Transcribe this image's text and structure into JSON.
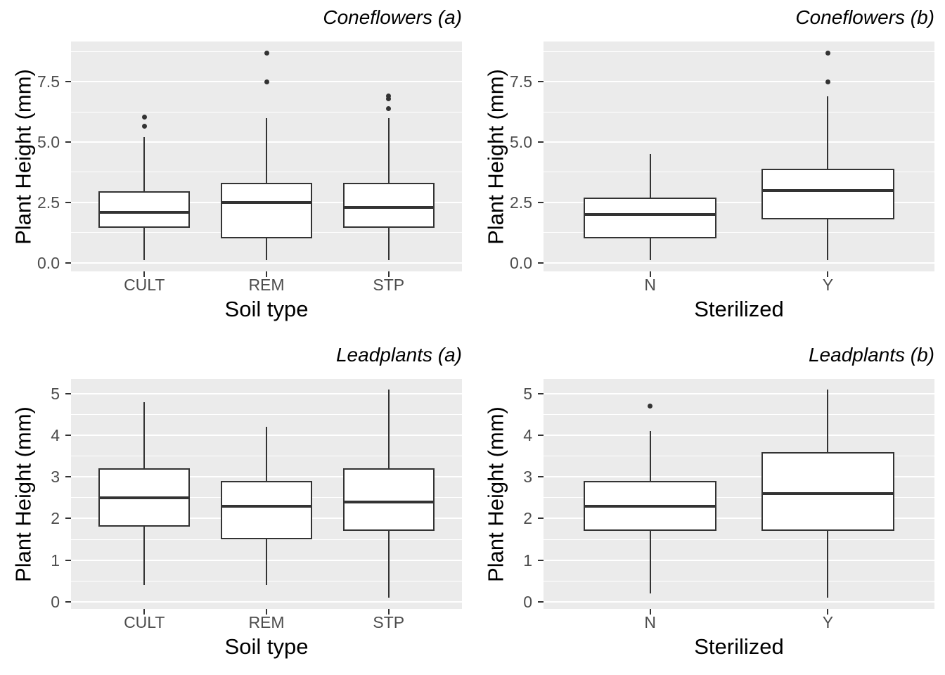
{
  "colors": {
    "panel_bg": "#EBEBEB",
    "grid": "#FFFFFF",
    "box_line": "#333333",
    "box_fill": "#FFFFFF",
    "tick_label": "#4D4D4D",
    "text": "#000000",
    "background": "#FFFFFF"
  },
  "chart_data": [
    {
      "type": "boxplot",
      "title": "Coneflowers (a)",
      "xlabel": "Soil type",
      "ylabel": "Plant Height (mm)",
      "categories": [
        "CULT",
        "REM",
        "STP"
      ],
      "ylim": [
        -0.36,
        9.17
      ],
      "grid": "on",
      "yticks": {
        "values": [
          0.0,
          2.5,
          5.0,
          7.5
        ],
        "labels": [
          "0.0",
          "2.5",
          "5.0",
          "7.5"
        ],
        "minor": [
          1.25,
          3.75,
          6.25,
          8.75
        ]
      },
      "boxes": [
        {
          "category": "CULT",
          "whisker_low": 0.1,
          "q1": 1.45,
          "median": 2.1,
          "q3": 2.95,
          "whisker_high": 5.2,
          "outliers": [
            5.65,
            6.05
          ]
        },
        {
          "category": "REM",
          "whisker_low": 0.1,
          "q1": 1.0,
          "median": 2.5,
          "q3": 3.3,
          "whisker_high": 6.0,
          "outliers": [
            7.5,
            8.7
          ]
        },
        {
          "category": "STP",
          "whisker_low": 0.1,
          "q1": 1.45,
          "median": 2.3,
          "q3": 3.3,
          "whisker_high": 6.0,
          "outliers": [
            6.4,
            6.8,
            6.9
          ]
        }
      ]
    },
    {
      "type": "boxplot",
      "title": "Coneflowers (b)",
      "xlabel": "Sterilized",
      "ylabel": "Plant Height (mm)",
      "categories": [
        "N",
        "Y"
      ],
      "ylim": [
        -0.36,
        9.17
      ],
      "grid": "on",
      "yticks": {
        "values": [
          0.0,
          2.5,
          5.0,
          7.5
        ],
        "labels": [
          "0.0",
          "2.5",
          "5.0",
          "7.5"
        ],
        "minor": [
          1.25,
          3.75,
          6.25,
          8.75
        ]
      },
      "boxes": [
        {
          "category": "N",
          "whisker_low": 0.1,
          "q1": 1.0,
          "median": 2.0,
          "q3": 2.7,
          "whisker_high": 4.5,
          "outliers": []
        },
        {
          "category": "Y",
          "whisker_low": 0.1,
          "q1": 1.8,
          "median": 3.0,
          "q3": 3.9,
          "whisker_high": 6.9,
          "outliers": [
            7.5,
            8.7
          ]
        }
      ]
    },
    {
      "type": "boxplot",
      "title": "Leadplants (a)",
      "xlabel": "Soil type",
      "ylabel": "Plant Height (mm)",
      "categories": [
        "CULT",
        "REM",
        "STP"
      ],
      "ylim": [
        -0.17,
        5.35
      ],
      "grid": "on",
      "yticks": {
        "values": [
          0,
          1,
          2,
          3,
          4,
          5
        ],
        "labels": [
          "0",
          "1",
          "2",
          "3",
          "4",
          "5"
        ],
        "minor": [
          0.5,
          1.5,
          2.5,
          3.5,
          4.5
        ]
      },
      "boxes": [
        {
          "category": "CULT",
          "whisker_low": 0.4,
          "q1": 1.8,
          "median": 2.5,
          "q3": 3.2,
          "whisker_high": 4.8,
          "outliers": []
        },
        {
          "category": "REM",
          "whisker_low": 0.4,
          "q1": 1.5,
          "median": 2.3,
          "q3": 2.9,
          "whisker_high": 4.2,
          "outliers": []
        },
        {
          "category": "STP",
          "whisker_low": 0.1,
          "q1": 1.7,
          "median": 2.4,
          "q3": 3.2,
          "whisker_high": 5.1,
          "outliers": []
        }
      ]
    },
    {
      "type": "boxplot",
      "title": "Leadplants (b)",
      "xlabel": "Sterilized",
      "ylabel": "Plant Height (mm)",
      "categories": [
        "N",
        "Y"
      ],
      "ylim": [
        -0.17,
        5.35
      ],
      "grid": "on",
      "yticks": {
        "values": [
          0,
          1,
          2,
          3,
          4,
          5
        ],
        "labels": [
          "0",
          "1",
          "2",
          "3",
          "4",
          "5"
        ],
        "minor": [
          0.5,
          1.5,
          2.5,
          3.5,
          4.5
        ]
      },
      "boxes": [
        {
          "category": "N",
          "whisker_low": 0.2,
          "q1": 1.7,
          "median": 2.3,
          "q3": 2.9,
          "whisker_high": 4.1,
          "outliers": [
            4.7
          ]
        },
        {
          "category": "Y",
          "whisker_low": 0.1,
          "q1": 1.7,
          "median": 2.6,
          "q3": 3.6,
          "whisker_high": 5.1,
          "outliers": []
        }
      ]
    }
  ]
}
